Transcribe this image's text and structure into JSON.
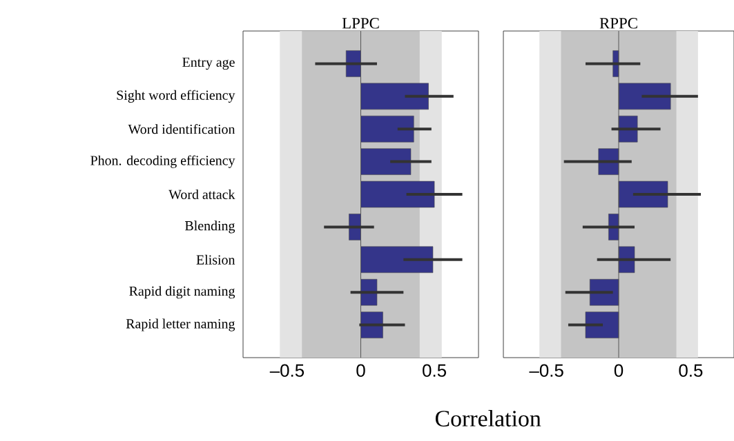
{
  "chart_data": [
    {
      "type": "bar",
      "orientation": "horizontal",
      "title": "LPPC",
      "xlabel": "Correlation",
      "categories": [
        "Entry age",
        "Sight word efficiency",
        "Word identification",
        "Phon. decoding efficiency",
        "Word attack",
        "Blending",
        "Elision",
        "Rapid digit naming",
        "Rapid letter naming"
      ],
      "values": [
        -0.1,
        0.46,
        0.36,
        0.34,
        0.5,
        -0.08,
        0.49,
        0.11,
        0.15
      ],
      "errors": [
        [
          -0.31,
          0.11
        ],
        [
          0.3,
          0.63
        ],
        [
          0.25,
          0.48
        ],
        [
          0.2,
          0.48
        ],
        [
          0.31,
          0.69
        ],
        [
          -0.25,
          0.09
        ],
        [
          0.29,
          0.69
        ],
        [
          -0.07,
          0.29
        ],
        [
          -0.01,
          0.3
        ]
      ],
      "color": "#34358a",
      "xlim": [
        -0.8,
        0.8
      ],
      "xticks": [
        {
          "value": -0.5,
          "label": "–0.5"
        },
        0,
        0.5
      ],
      "bands": [
        {
          "axis": "x",
          "from": -0.55,
          "to": 0.55,
          "color": "#e3e3e3"
        },
        {
          "axis": "x",
          "from": -0.4,
          "to": 0.4,
          "color": "#c4c4c4"
        }
      ],
      "ref_lines": [
        {
          "axis": "x",
          "value": 0,
          "color": "#555555"
        }
      ]
    },
    {
      "type": "bar",
      "orientation": "horizontal",
      "title": "RPPC",
      "categories": [
        null,
        null,
        null,
        null,
        null,
        null,
        null,
        null,
        null
      ],
      "values": [
        -0.04,
        0.36,
        0.13,
        -0.14,
        0.34,
        -0.07,
        0.11,
        -0.2,
        -0.23
      ],
      "errors": [
        [
          -0.23,
          0.15
        ],
        [
          0.16,
          0.55
        ],
        [
          -0.05,
          0.29
        ],
        [
          -0.38,
          0.09
        ],
        [
          0.1,
          0.57
        ],
        [
          -0.25,
          0.11
        ],
        [
          -0.15,
          0.36
        ],
        [
          -0.37,
          -0.04
        ],
        [
          -0.35,
          -0.11
        ]
      ],
      "color": "#34358a",
      "xlim": [
        -0.8,
        0.8
      ],
      "xticks": [
        {
          "value": -0.5,
          "label": "–0.5"
        },
        0,
        0.5
      ],
      "bands": [
        {
          "axis": "x",
          "from": -0.55,
          "to": 0.55,
          "color": "#e3e3e3"
        },
        {
          "axis": "x",
          "from": -0.4,
          "to": 0.4,
          "color": "#c4c4c4"
        }
      ],
      "ref_lines": [
        {
          "axis": "x",
          "value": 0,
          "color": "#555555"
        }
      ],
      "tick_labels": "x"
    }
  ]
}
